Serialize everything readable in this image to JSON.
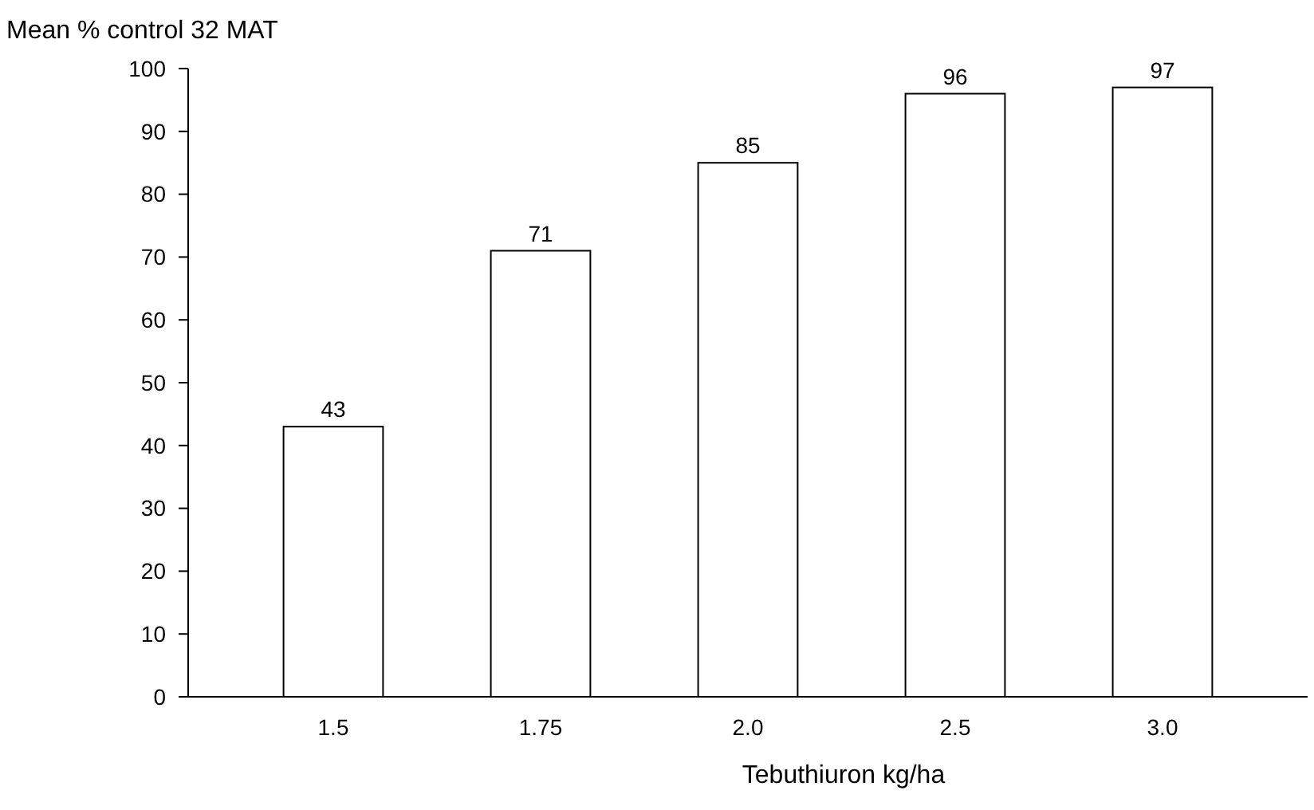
{
  "chart_data": {
    "type": "bar",
    "ylabel": "Mean % control 32 MAT",
    "xlabel": "Tebuthiuron kg/ha",
    "categories": [
      "1.5",
      "1.75",
      "2.0",
      "2.5",
      "3.0"
    ],
    "values": [
      43,
      71,
      85,
      96,
      97
    ],
    "color": "#ffffff",
    "ylim": [
      0,
      100
    ],
    "yticks": [
      0,
      10,
      20,
      30,
      40,
      50,
      60,
      70,
      80,
      90,
      100
    ],
    "data_labels": true
  }
}
